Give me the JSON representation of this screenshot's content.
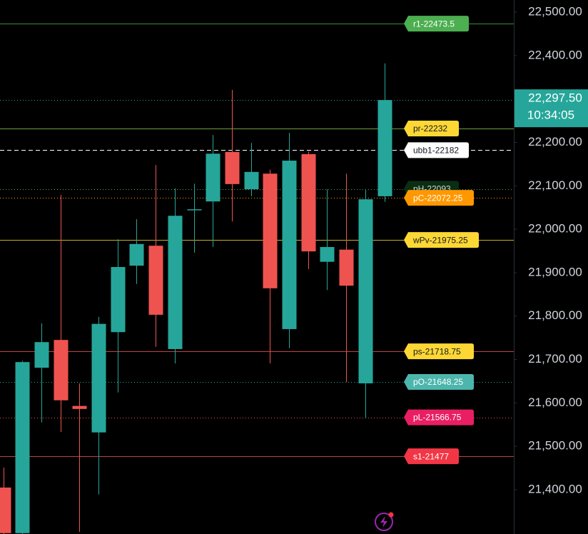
{
  "chart_data": {
    "type": "candlestick",
    "up_color": "#26a69a",
    "down_color": "#ef5350",
    "ylim": [
      21298,
      22528
    ],
    "yticks": [
      {
        "value": 21400,
        "label": "21,400.00"
      },
      {
        "value": 21500,
        "label": "21,500.00"
      },
      {
        "value": 21600,
        "label": "21,600.00"
      },
      {
        "value": 21700,
        "label": "21,700.00"
      },
      {
        "value": 21800,
        "label": "21,800.00"
      },
      {
        "value": 21900,
        "label": "21,900.00"
      },
      {
        "value": 22000,
        "label": "22,000.00"
      },
      {
        "value": 22100,
        "label": "22,100.00"
      },
      {
        "value": 22200,
        "label": "22,200.00"
      },
      {
        "value": 22300,
        "label": "22,300.00"
      },
      {
        "value": 22400,
        "label": "22,400.00"
      },
      {
        "value": 22500,
        "label": "22,500.00"
      }
    ],
    "grid": false,
    "candles": [
      {
        "open": 21405,
        "high": 21451,
        "low": 21298,
        "close": 21300
      },
      {
        "open": 21300,
        "high": 21697,
        "low": 21298,
        "close": 21694
      },
      {
        "open": 21681,
        "high": 21783,
        "low": 21555,
        "close": 21740
      },
      {
        "open": 21745,
        "high": 22079,
        "low": 21533,
        "close": 21606
      },
      {
        "open": 21593,
        "high": 21645,
        "low": 21303,
        "close": 21586
      },
      {
        "open": 21532,
        "high": 21798,
        "low": 21389,
        "close": 21782
      },
      {
        "open": 21763,
        "high": 21977,
        "low": 21624,
        "close": 21913
      },
      {
        "open": 21916,
        "high": 22023,
        "low": 21874,
        "close": 21966
      },
      {
        "open": 21962,
        "high": 22148,
        "low": 21729,
        "close": 21803
      },
      {
        "open": 21724,
        "high": 22094,
        "low": 21691,
        "close": 22031
      },
      {
        "open": 22044,
        "high": 22105,
        "low": 21946,
        "close": 22046
      },
      {
        "open": 22064,
        "high": 22217,
        "low": 21959,
        "close": 22174
      },
      {
        "open": 22178,
        "high": 22321,
        "low": 22018,
        "close": 22104
      },
      {
        "open": 22092,
        "high": 22199,
        "low": 22076,
        "close": 22132
      },
      {
        "open": 22128,
        "high": 22137,
        "low": 21691,
        "close": 21864
      },
      {
        "open": 21770,
        "high": 22222,
        "low": 21726,
        "close": 22158
      },
      {
        "open": 22173,
        "high": 22179,
        "low": 21908,
        "close": 21949
      },
      {
        "open": 21925,
        "high": 22092,
        "low": 21860,
        "close": 21959
      },
      {
        "open": 21953,
        "high": 22128,
        "low": 21648,
        "close": 21870
      },
      {
        "open": 21645,
        "high": 22092,
        "low": 21565,
        "close": 22069
      },
      {
        "open": 22076,
        "high": 22382,
        "low": 22063,
        "close": 22297.5
      }
    ],
    "levels": [
      {
        "label": "r1-22473.5",
        "value": 22473.5,
        "line_color": "#4caf50",
        "line_style": "solid",
        "box_color": "#4caf50",
        "text_color": "#ffffff"
      },
      {
        "label": "pr-22232",
        "value": 22232,
        "line_color": "#8bc34a",
        "line_style": "solid",
        "box_color": "#fdd835",
        "text_color": "#131722"
      },
      {
        "label": "ubb1-22182",
        "value": 22182,
        "line_color": "#ffffff",
        "line_style": "dashed",
        "box_color": "#ffffff",
        "text_color": "#131722"
      },
      {
        "label": "pH-22093",
        "value": 22093,
        "line_color": "#4caf50",
        "line_style": "dotted",
        "box_color": "#0b2e12",
        "text_color": "#d1d4dc"
      },
      {
        "label": "pC-22072.25",
        "value": 22072.25,
        "line_color": "#ff9800",
        "line_style": "dotted",
        "box_color": "#ff9800",
        "text_color": "#ffffff"
      },
      {
        "label": "wPv-21975.25",
        "value": 21975.25,
        "line_color": "#fdd835",
        "line_style": "solid",
        "box_color": "#fdd835",
        "text_color": "#131722"
      },
      {
        "label": "ps-21718.75",
        "value": 21718.75,
        "line_color": "#ef5350",
        "line_style": "solid",
        "box_color": "#fdd835",
        "text_color": "#131722"
      },
      {
        "label": "pO-21648.25",
        "value": 21648.25,
        "line_color": "#26a69a",
        "line_style": "dotted",
        "box_color": "#4db6ac",
        "text_color": "#ffffff"
      },
      {
        "label": "pL-21566.75",
        "value": 21566.75,
        "line_color": "#ef5350",
        "line_style": "dotted",
        "box_color": "#e91e63",
        "text_color": "#ffffff"
      },
      {
        "label": "s1-21477",
        "value": 21477,
        "line_color": "#ef5350",
        "line_style": "solid",
        "box_color": "#f23645",
        "text_color": "#ffffff"
      }
    ],
    "last_price": {
      "value": 22297.5,
      "label": "22,297.50"
    },
    "countdown": "10:34:05"
  }
}
